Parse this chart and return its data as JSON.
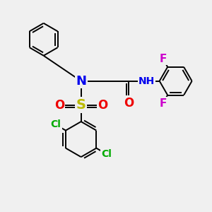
{
  "background_color": "#f0f0f0",
  "atom_colors": {
    "C": "#000000",
    "H": "#008080",
    "N": "#0000ee",
    "O": "#ee0000",
    "S": "#bbbb00",
    "Cl": "#00aa00",
    "F": "#cc00cc"
  },
  "bond_color": "#000000",
  "bond_width": 1.4,
  "font_size_atom": 11,
  "figsize": [
    3.0,
    3.0
  ],
  "dpi": 100
}
